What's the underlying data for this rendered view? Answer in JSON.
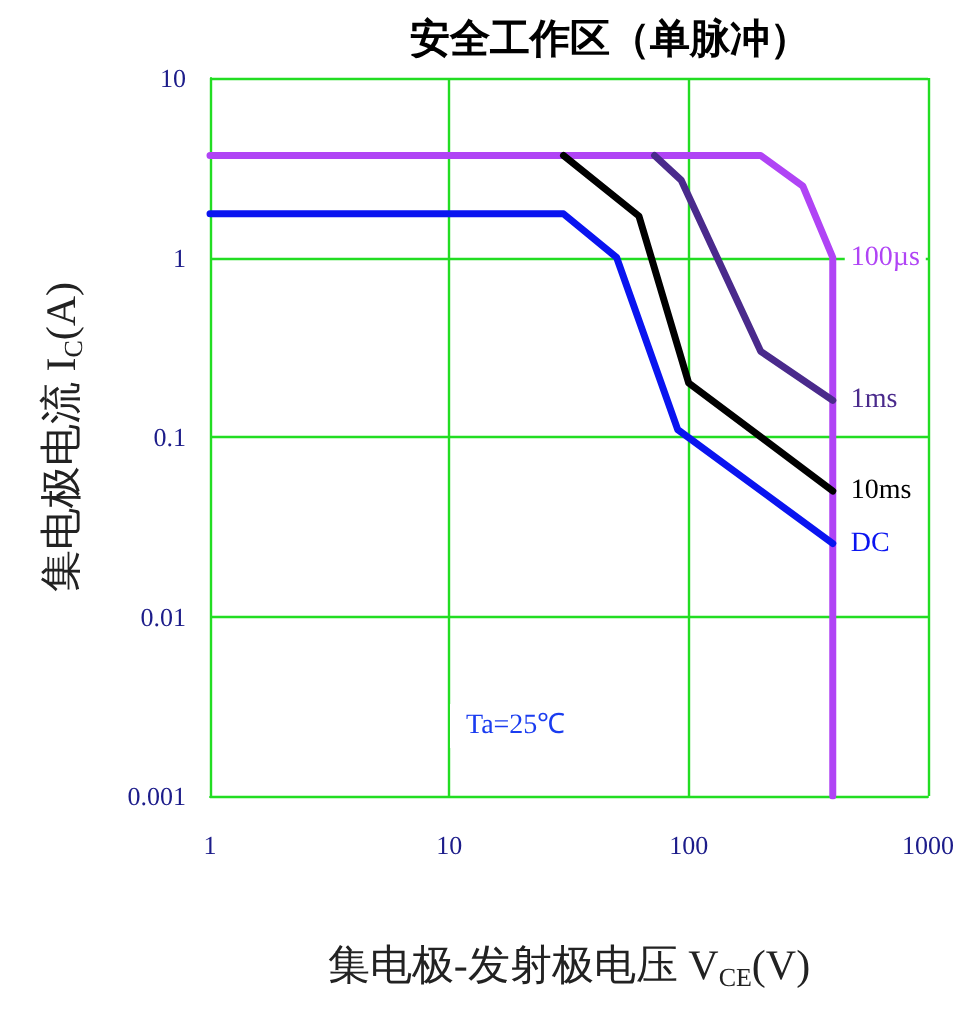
{
  "chart_data": {
    "type": "line",
    "title": "安全工作区（单脉冲）",
    "xlabel": "集电极-发射极电压 V$_{CE}$(V)",
    "ylabel": "集电极电流 I$_{C}$(A)",
    "annotations": [
      "Ta=25℃"
    ],
    "log": "xy",
    "grid": true,
    "legend": false,
    "marker": "none",
    "line_style": "solid",
    "xlim": [
      1,
      1000
    ],
    "xticks": [
      1,
      10,
      100,
      1000
    ],
    "ylim": [
      0.001,
      10
    ],
    "yticks": [
      {
        "value": 0.001,
        "label": "0.001"
      },
      {
        "value": 0.01,
        "label": "0.01"
      },
      {
        "value": 0.1,
        "label": "0.1"
      },
      1,
      10
    ],
    "series": [
      {
        "name": "100µs",
        "color": "#b044f5",
        "x": [
          1,
          200,
          300,
          400,
          400
        ],
        "values": [
          3.7,
          3.7,
          2.5,
          1.0,
          0.001
        ]
      },
      {
        "name": "1ms",
        "color": "#4a2a8c",
        "x": [
          72,
          93,
          200,
          400
        ],
        "values": [
          3.7,
          2.7,
          0.3,
          0.16
        ]
      },
      {
        "name": "10ms",
        "color": "#000000",
        "x": [
          30,
          62,
          100,
          400
        ],
        "values": [
          3.7,
          1.7,
          0.2,
          0.05
        ]
      },
      {
        "name": "DC",
        "color": "#0a14f0",
        "x": [
          1,
          30,
          50,
          90,
          400
        ],
        "values": [
          1.75,
          1.75,
          1.0,
          0.11,
          0.0255
        ]
      }
    ]
  }
}
